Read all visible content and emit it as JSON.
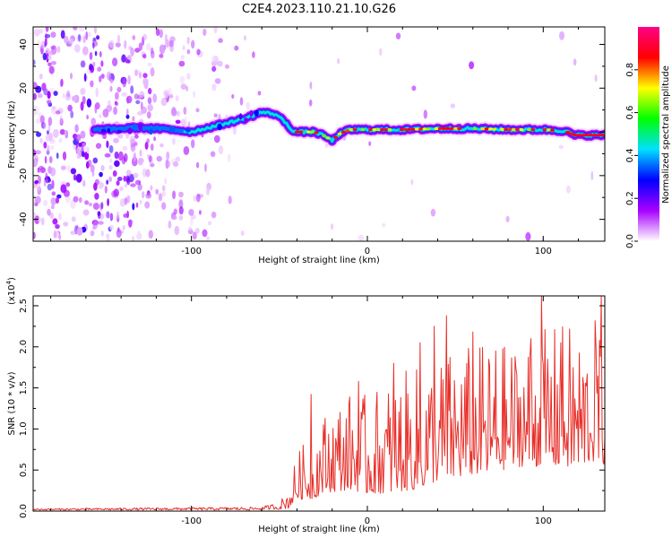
{
  "title": "C2E4.2023.110.21.10.G26",
  "chart_data": [
    {
      "type": "heatmap",
      "name": "spectrogram",
      "xlabel": "Height of straight line (km)",
      "ylabel": "Frequency (Hz)",
      "xlim": [
        -190,
        135
      ],
      "ylim": [
        -50,
        48
      ],
      "xticks": [
        -100,
        0,
        100
      ],
      "xtick_labels": [
        "-100",
        "0",
        "100"
      ],
      "yticks": [
        -40,
        -20,
        0,
        20,
        40
      ],
      "ytick_labels": [
        "-40",
        "-20",
        "0",
        "20",
        "40"
      ],
      "ridge": {
        "x": [
          -190,
          -150,
          -130,
          -110,
          -100,
          -90,
          -80,
          -70,
          -60,
          -52,
          -46,
          -42,
          -38,
          -30,
          -24,
          -20,
          -16,
          -10,
          0,
          20,
          40,
          60,
          80,
          100,
          112,
          118,
          135
        ],
        "y": [
          1,
          1,
          2,
          1,
          0,
          2,
          4,
          6,
          9,
          8,
          4,
          0,
          0,
          0,
          -2,
          -4,
          -1,
          1,
          1,
          1,
          1.5,
          1.5,
          1,
          1,
          0.5,
          -1.5,
          -1.5
        ]
      },
      "colorbar": {
        "label": "Normalized spectral amplitude",
        "range": [
          0,
          1
        ],
        "ticks": [
          0.0,
          0.2,
          0.4,
          0.6,
          0.8
        ],
        "tick_labels": [
          "0.0",
          "0.2",
          "0.4",
          "0.6",
          "0.8"
        ],
        "colors": [
          "#ffffff",
          "#a800ff",
          "#0000ff",
          "#00e0ff",
          "#00ff00",
          "#ffff00",
          "#ff0000",
          "#ff0088"
        ]
      }
    },
    {
      "type": "line",
      "name": "snr",
      "xlabel": "Height of straight line (km)",
      "ylabel": "SNR (10 * v/v)",
      "multiplier": "(x10",
      "multiplier_exp": "4",
      "multiplier_close": ")",
      "color": "#e8302a",
      "xlim": [
        -190,
        135
      ],
      "ylim": [
        0,
        2.62
      ],
      "xticks": [
        -100,
        0,
        100
      ],
      "xtick_labels": [
        "-100",
        "0",
        "100"
      ],
      "yticks": [
        0.0,
        0.5,
        1.0,
        1.5,
        2.0,
        2.5
      ],
      "ytick_labels": [
        "0.0",
        "0.5",
        "1.0",
        "1.5",
        "2.0",
        "2.5"
      ],
      "envelope": {
        "x": [
          -190,
          -60,
          -50,
          -45,
          -40,
          -35,
          -30,
          -25,
          -20,
          -10,
          0,
          10,
          20,
          30,
          40,
          50,
          60,
          70,
          80,
          90,
          100,
          110,
          120,
          125,
          130,
          135
        ],
        "base": [
          0.02,
          0.03,
          0.05,
          0.1,
          0.3,
          0.35,
          0.4,
          0.5,
          0.55,
          0.6,
          0.55,
          0.6,
          0.65,
          0.7,
          0.8,
          0.85,
          0.9,
          0.9,
          0.95,
          1.0,
          1.0,
          1.05,
          1.0,
          1.05,
          1.1,
          1.1
        ],
        "amp": [
          0.01,
          0.02,
          0.06,
          0.15,
          0.35,
          0.45,
          0.55,
          0.6,
          0.7,
          0.75,
          0.75,
          0.85,
          0.9,
          0.95,
          0.95,
          1.0,
          1.0,
          1.0,
          0.95,
          1.0,
          1.05,
          1.1,
          1.1,
          1.0,
          1.1,
          1.2
        ]
      },
      "spikes": [
        {
          "x": -32,
          "y": 1.42
        },
        {
          "x": -5,
          "y": 1.58
        },
        {
          "x": 15,
          "y": 1.8
        },
        {
          "x": 30,
          "y": 2.05
        },
        {
          "x": 38,
          "y": 2.25
        },
        {
          "x": 45,
          "y": 2.38
        },
        {
          "x": 60,
          "y": 2.18
        },
        {
          "x": 73,
          "y": 1.95
        },
        {
          "x": 93,
          "y": 2.1
        },
        {
          "x": 99,
          "y": 2.62
        },
        {
          "x": 110,
          "y": 2.05
        },
        {
          "x": 130,
          "y": 2.0
        },
        {
          "x": 133,
          "y": 2.62
        }
      ]
    }
  ]
}
